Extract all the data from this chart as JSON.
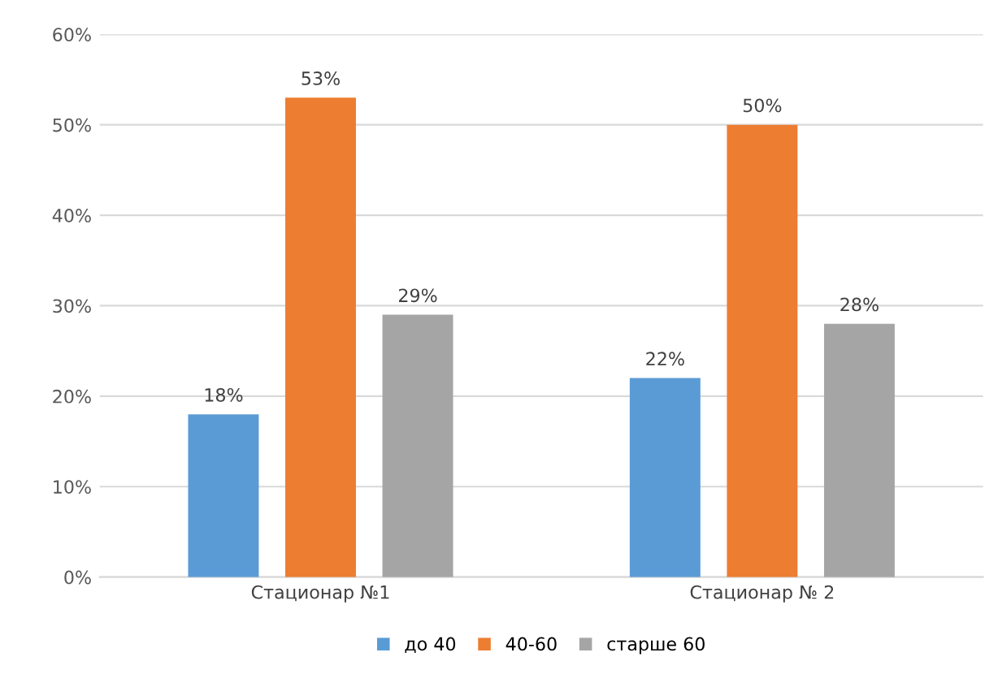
{
  "chart_data": {
    "type": "bar",
    "categories": [
      "Стационар №1",
      "Стационар № 2"
    ],
    "series": [
      {
        "name": "до 40",
        "color": "#5b9bd5",
        "values": [
          18,
          22
        ],
        "value_labels": [
          "18%",
          "22%"
        ]
      },
      {
        "name": "40-60",
        "color": "#ed7d31",
        "values": [
          53,
          50
        ],
        "value_labels": [
          "53%",
          "50%"
        ]
      },
      {
        "name": "старше 60",
        "color": "#a5a5a5",
        "values": [
          29,
          28
        ],
        "value_labels": [
          "29%",
          "28%"
        ]
      }
    ],
    "ylim": [
      0,
      60
    ],
    "yticks": [
      {
        "value": 0,
        "label": "0%"
      },
      {
        "value": 10,
        "label": "10%"
      },
      {
        "value": 20,
        "label": "20%"
      },
      {
        "value": 30,
        "label": "30%"
      },
      {
        "value": 40,
        "label": "40%"
      },
      {
        "value": 50,
        "label": "50%"
      },
      {
        "value": 60,
        "label": "60%"
      }
    ],
    "grid": "y",
    "legend": "bottom"
  }
}
